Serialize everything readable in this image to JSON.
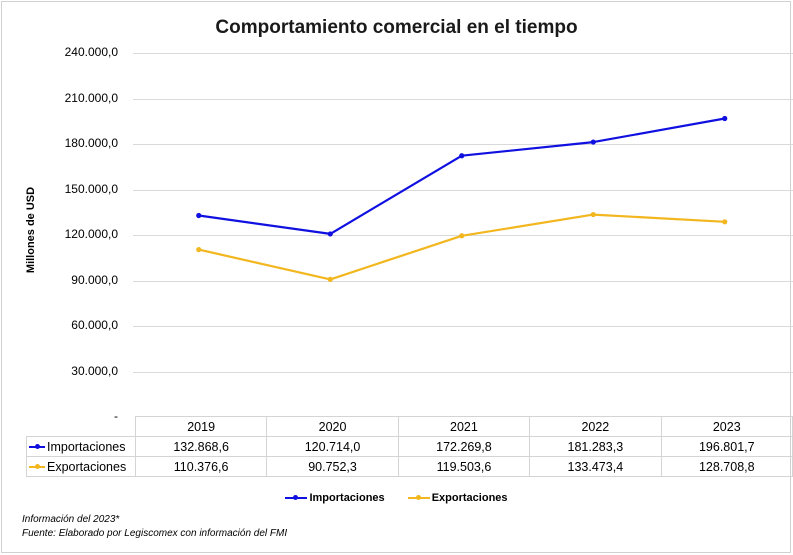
{
  "chart_data": {
    "type": "line",
    "title": "Comportamiento comercial en el tiempo",
    "ylabel": "Millones de USD",
    "xlabel": "",
    "ylim": [
      0,
      240000
    ],
    "y_ticks": [
      "-",
      "30.000,0",
      "60.000,0",
      "90.000,0",
      "120.000,0",
      "150.000,0",
      "180.000,0",
      "210.000,0",
      "240.000,0"
    ],
    "y_tick_values": [
      0,
      30000,
      60000,
      90000,
      120000,
      150000,
      180000,
      210000,
      240000
    ],
    "categories": [
      "2019",
      "2020",
      "2021",
      "2022",
      "2023"
    ],
    "series": [
      {
        "name": "Importaciones",
        "color": "#1010e0",
        "values": [
          132868.6,
          120714.0,
          172269.8,
          181283.3,
          196801.7
        ],
        "labels": [
          "132.868,6",
          "120.714,0",
          "172.269,8",
          "181.283,3",
          "196.801,7"
        ]
      },
      {
        "name": "Exportaciones",
        "color": "#f2b61e",
        "values": [
          110376.6,
          90752.3,
          119503.6,
          133473.4,
          128708.8
        ],
        "labels": [
          "110.376,6",
          "90.752,3",
          "119.503,6",
          "133.473,4",
          "128.708,8"
        ]
      }
    ],
    "grid": true,
    "legend": "bottom-center",
    "data_table": true
  },
  "notes": {
    "line1": "Información del 2023*",
    "line2": "Fuente: Elaborado por Legiscomex con información del FMI"
  }
}
